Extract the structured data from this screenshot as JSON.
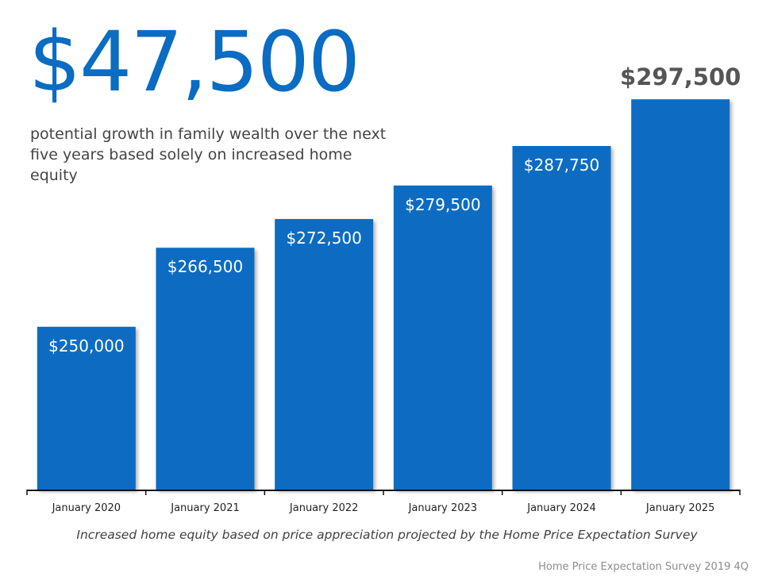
{
  "headline": {
    "amount": "$47,500",
    "description": "potential growth in family wealth over the next five years based solely on increased home equity"
  },
  "chart_data": {
    "type": "bar",
    "categories": [
      "January 2020",
      "January 2021",
      "January 2022",
      "January 2023",
      "January 2024",
      "January 2025"
    ],
    "values": [
      250000,
      266500,
      272500,
      279500,
      287750,
      297500
    ],
    "data_labels": [
      "$250,000",
      "$266,500",
      "$272,500",
      "$279,500",
      "$287,750",
      "$297,500"
    ],
    "title": "",
    "xlabel": "",
    "ylabel": "",
    "ylim": [
      216000,
      302000
    ],
    "grid": false,
    "legend": "none",
    "bar_color": "#0a6cc2",
    "highlight_label_color": "#555555"
  },
  "footnote": "Increased home equity based on price appreciation projected by the Home Price Expectation Survey",
  "source": "Home Price Expectation Survey 2019 4Q"
}
